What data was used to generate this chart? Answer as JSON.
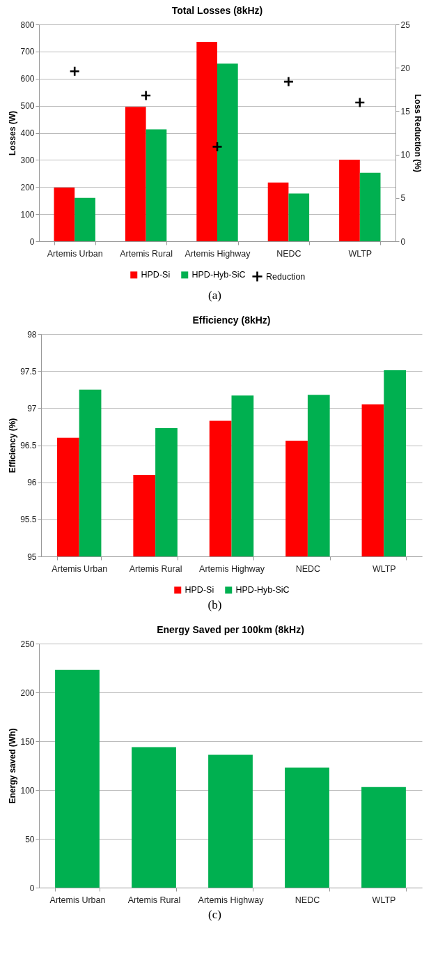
{
  "chart_data": [
    {
      "type": "bar",
      "title": "Total Losses (8kHz)",
      "ylabel": "Losses (W)",
      "y2label": "Loss Reduction (%)",
      "categories": [
        "Artemis Urban",
        "Artemis Rural",
        "Artemis Highway",
        "NEDC",
        "WLTP"
      ],
      "series": [
        {
          "name": "HPD-Si",
          "color": "#ff0000",
          "values": [
            198,
            496,
            736,
            217,
            301
          ]
        },
        {
          "name": "HPD-Hyb-SiC",
          "color": "#00b050",
          "values": [
            160,
            413,
            655,
            176,
            253
          ]
        },
        {
          "name": "Reduction",
          "type": "scatter",
          "axis": "y2",
          "color": "#000000",
          "values": [
            19.6,
            16.8,
            10.9,
            18.4,
            16.0
          ]
        }
      ],
      "marker": "cross",
      "ylim": [
        0,
        800
      ],
      "yticks": [
        0,
        100,
        200,
        300,
        400,
        500,
        600,
        700,
        800
      ],
      "y2lim": [
        0,
        25
      ],
      "y2ticks": [
        0,
        5,
        10,
        15,
        20,
        25
      ],
      "grid": "y",
      "legend": "bottom",
      "annotations": [
        "(a)"
      ]
    },
    {
      "type": "bar",
      "title": "Efficiency (8kHz)",
      "ylabel": "Efficiency (%)",
      "categories": [
        "Artemis Urban",
        "Artemis Rural",
        "Artemis Highway",
        "NEDC",
        "WLTP"
      ],
      "series": [
        {
          "name": "HPD-Si",
          "color": "#ff0000",
          "values": [
            96.6,
            96.1,
            96.83,
            96.56,
            97.05
          ]
        },
        {
          "name": "HPD-Hyb-SiC",
          "color": "#00b050",
          "values": [
            97.25,
            96.73,
            97.17,
            97.18,
            97.51
          ]
        }
      ],
      "ylim": [
        95,
        98
      ],
      "yticks": [
        95,
        95.5,
        96,
        96.5,
        97,
        97.5,
        98
      ],
      "grid": "y",
      "legend": "bottom",
      "annotations": [
        "(b)"
      ]
    },
    {
      "type": "bar",
      "title": "Energy Saved per 100km (8kHz)",
      "ylabel": "Energy saved (Wh)",
      "categories": [
        "Artemis Urban",
        "Artemis Rural",
        "Artemis Highway",
        "NEDC",
        "WLTP"
      ],
      "series": [
        {
          "color": "#00b050",
          "values": [
            223,
            144,
            136,
            123,
            103
          ]
        }
      ],
      "ylim": [
        0,
        250
      ],
      "yticks": [
        0,
        50,
        100,
        150,
        200,
        250
      ],
      "grid": "y",
      "annotations": [
        "(c)"
      ]
    }
  ]
}
